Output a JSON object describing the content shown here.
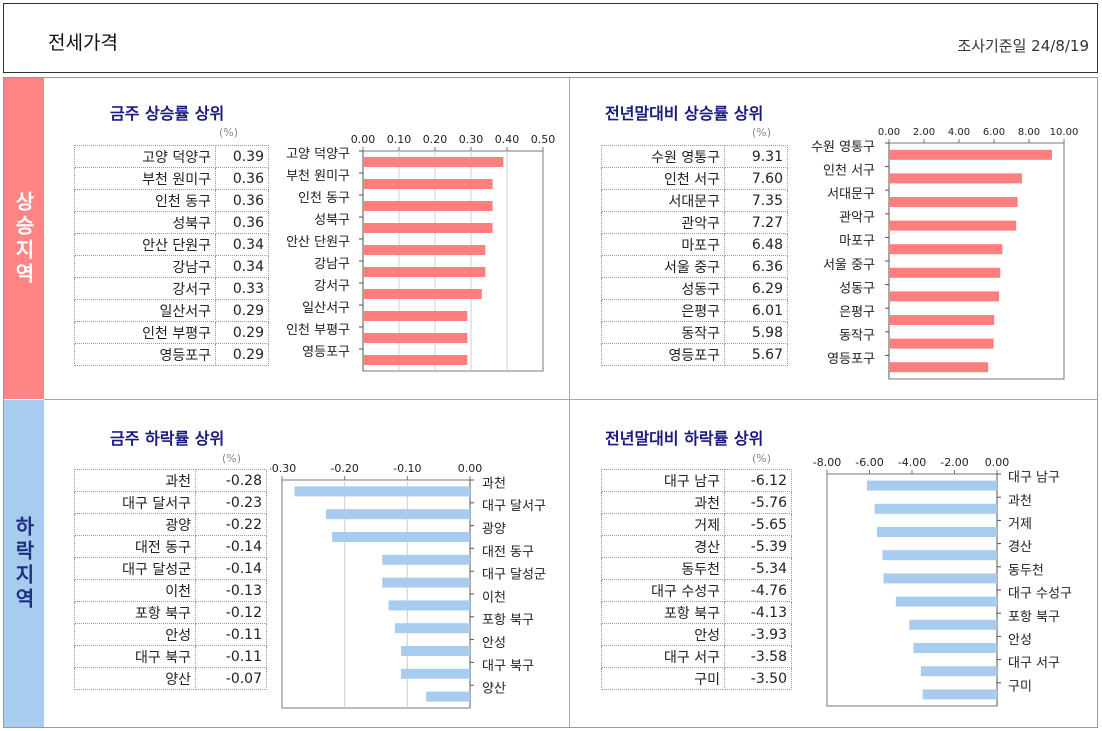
{
  "header": {
    "title": "전세가격",
    "date_label": "조사기준일 24/8/19"
  },
  "sidebar": {
    "rising": "상승지역",
    "falling": "하락지역"
  },
  "percent_unit": "(%)",
  "panels": [
    {
      "title": "금주 상승률 상위",
      "rows": [
        {
          "name": "고양 덕양구",
          "value": "0.39"
        },
        {
          "name": "부천 원미구",
          "value": "0.36"
        },
        {
          "name": "인천 동구",
          "value": "0.36"
        },
        {
          "name": "성북구",
          "value": "0.36"
        },
        {
          "name": "안산 단원구",
          "value": "0.34"
        },
        {
          "name": "강남구",
          "value": "0.34"
        },
        {
          "name": "강서구",
          "value": "0.33"
        },
        {
          "name": "일산서구",
          "value": "0.29"
        },
        {
          "name": "인천 부평구",
          "value": "0.29"
        },
        {
          "name": "영등포구",
          "value": "0.29"
        }
      ]
    },
    {
      "title": "전년말대비 상승률 상위",
      "rows": [
        {
          "name": "수원 영통구",
          "value": "9.31"
        },
        {
          "name": "인천 서구",
          "value": "7.60"
        },
        {
          "name": "서대문구",
          "value": "7.35"
        },
        {
          "name": "관악구",
          "value": "7.27"
        },
        {
          "name": "마포구",
          "value": "6.48"
        },
        {
          "name": "서울 중구",
          "value": "6.36"
        },
        {
          "name": "성동구",
          "value": "6.29"
        },
        {
          "name": "은평구",
          "value": "6.01"
        },
        {
          "name": "동작구",
          "value": "5.98"
        },
        {
          "name": "영등포구",
          "value": "5.67"
        }
      ]
    },
    {
      "title": "금주 하락률 상위",
      "rows": [
        {
          "name": "과천",
          "value": "-0.28"
        },
        {
          "name": "대구 달서구",
          "value": "-0.23"
        },
        {
          "name": "광양",
          "value": "-0.22"
        },
        {
          "name": "대전 동구",
          "value": "-0.14"
        },
        {
          "name": "대구 달성군",
          "value": "-0.14"
        },
        {
          "name": "이천",
          "value": "-0.13"
        },
        {
          "name": "포항 북구",
          "value": "-0.12"
        },
        {
          "name": "안성",
          "value": "-0.11"
        },
        {
          "name": "대구 북구",
          "value": "-0.11"
        },
        {
          "name": "양산",
          "value": "-0.07"
        }
      ]
    },
    {
      "title": "전년말대비 하락률 상위",
      "rows": [
        {
          "name": "대구 남구",
          "value": "-6.12"
        },
        {
          "name": "과천",
          "value": "-5.76"
        },
        {
          "name": "거제",
          "value": "-5.65"
        },
        {
          "name": "경산",
          "value": "-5.39"
        },
        {
          "name": "동두천",
          "value": "-5.34"
        },
        {
          "name": "대구 수성구",
          "value": "-4.76"
        },
        {
          "name": "포항 북구",
          "value": "-4.13"
        },
        {
          "name": "안성",
          "value": "-3.93"
        },
        {
          "name": "대구 서구",
          "value": "-3.58"
        },
        {
          "name": "구미",
          "value": "-3.50"
        }
      ]
    }
  ],
  "chart_data": [
    {
      "type": "bar",
      "orientation": "horizontal",
      "title": "금주 상승률 상위",
      "categories": [
        "고양 덕양구",
        "부천 원미구",
        "인천 동구",
        "성북구",
        "안산 단원구",
        "강남구",
        "강서구",
        "일산서구",
        "인천 부평구",
        "영등포구"
      ],
      "values": [
        0.39,
        0.36,
        0.36,
        0.36,
        0.34,
        0.34,
        0.33,
        0.29,
        0.29,
        0.29
      ],
      "xlim": [
        0,
        0.5
      ],
      "ticks": [
        "0.00",
        "0.10",
        "0.20",
        "0.30",
        "0.40",
        "0.50"
      ],
      "color": "#ff7f7f",
      "grid": true
    },
    {
      "type": "bar",
      "orientation": "horizontal",
      "title": "전년말대비 상승률 상위",
      "categories": [
        "수원 영통구",
        "인천 서구",
        "서대문구",
        "관악구",
        "마포구",
        "서울 중구",
        "성동구",
        "은평구",
        "동작구",
        "영등포구"
      ],
      "values": [
        9.31,
        7.6,
        7.35,
        7.27,
        6.48,
        6.36,
        6.29,
        6.01,
        5.98,
        5.67
      ],
      "xlim": [
        0,
        10
      ],
      "ticks": [
        "0.00",
        "2.00",
        "4.00",
        "6.00",
        "8.00",
        "10.00"
      ],
      "color": "#ff7f7f",
      "grid": false
    },
    {
      "type": "bar",
      "orientation": "horizontal",
      "title": "금주 하락률 상위",
      "categories": [
        "과천",
        "대구 달서구",
        "광양",
        "대전 동구",
        "대구 달성군",
        "이천",
        "포항 북구",
        "안성",
        "대구 북구",
        "양산"
      ],
      "values": [
        -0.28,
        -0.23,
        -0.22,
        -0.14,
        -0.14,
        -0.13,
        -0.12,
        -0.11,
        -0.11,
        -0.07
      ],
      "xlim": [
        -0.3,
        0
      ],
      "ticks": [
        "-0.30",
        "-0.20",
        "-0.10",
        "0.00"
      ],
      "color": "#a8ccf0",
      "grid": true
    },
    {
      "type": "bar",
      "orientation": "horizontal",
      "title": "전년말대비 하락률 상위",
      "categories": [
        "대구 남구",
        "과천",
        "거제",
        "경산",
        "동두천",
        "대구 수성구",
        "포항 북구",
        "안성",
        "대구 서구",
        "구미"
      ],
      "values": [
        -6.12,
        -5.76,
        -5.65,
        -5.39,
        -5.34,
        -4.76,
        -4.13,
        -3.93,
        -3.58,
        -3.5
      ],
      "xlim": [
        -8,
        0
      ],
      "ticks": [
        "-8.00",
        "-6.00",
        "-4.00",
        "-2.00",
        "0.00"
      ],
      "color": "#a8ccf0",
      "grid": false
    }
  ]
}
